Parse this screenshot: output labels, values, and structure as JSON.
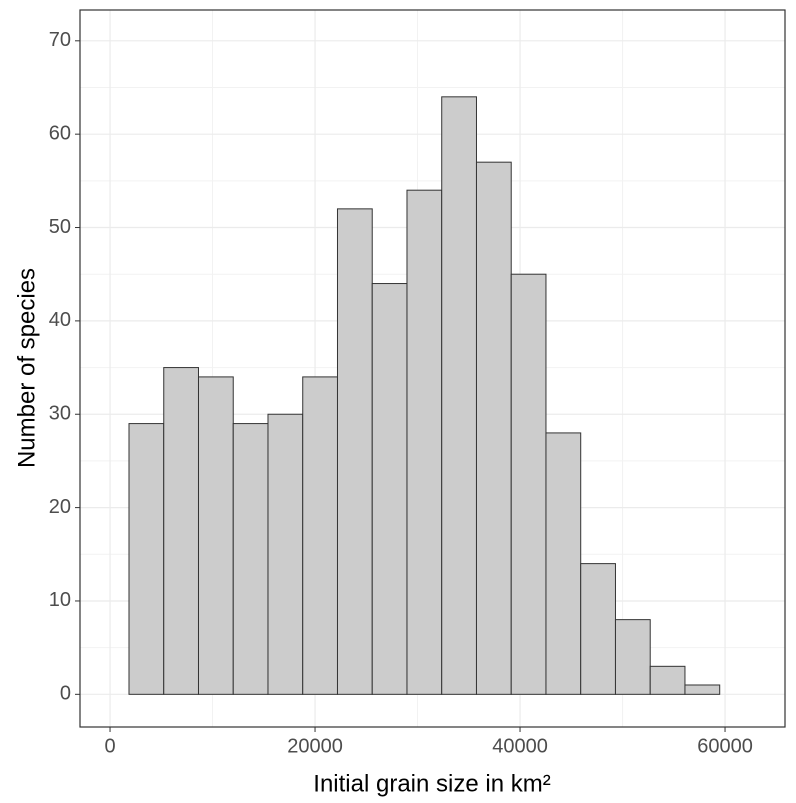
{
  "chart_data": {
    "type": "histogram",
    "xlabel": "Initial grain size in km²",
    "ylabel": "Number of species",
    "bins": [
      1850,
      5240,
      8630,
      12020,
      15410,
      18800,
      22190,
      25580,
      28970,
      32360,
      35750,
      39140,
      42530,
      45920,
      49310,
      52700,
      56090,
      59480,
      62870
    ],
    "counts": [
      29,
      35,
      34,
      29,
      30,
      34,
      52,
      44,
      54,
      64,
      57,
      45,
      28,
      14,
      8,
      3,
      1,
      0
    ],
    "color": "#cccccc",
    "edgecolor": "#333333",
    "xlim": [
      -2930,
      65850
    ],
    "xticks": [
      0,
      20000,
      40000,
      60000
    ],
    "ylim": [
      -3.5,
      73.3
    ],
    "yticks": [
      0,
      10,
      20,
      30,
      40,
      50,
      60,
      70
    ],
    "grid": true
  }
}
